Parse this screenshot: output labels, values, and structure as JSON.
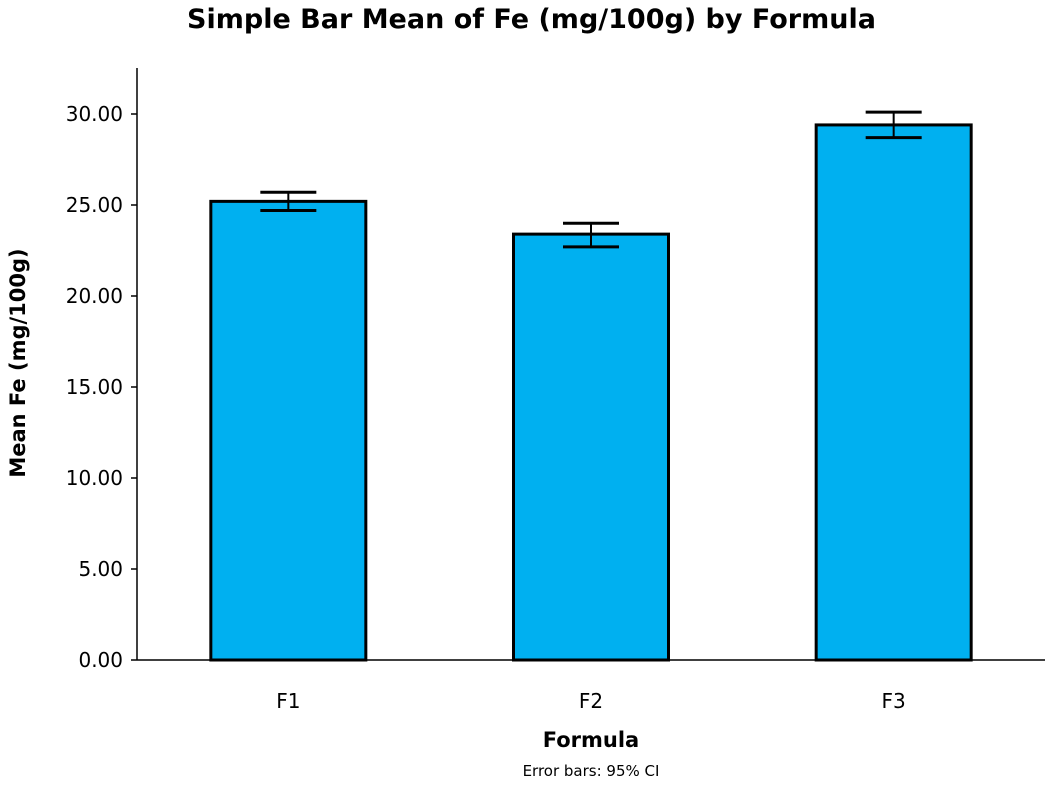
{
  "chart_data": {
    "type": "bar",
    "title": "Simple Bar Mean of Fe (mg/100g) by Formula",
    "xlabel": "Formula",
    "ylabel": "Mean Fe (mg/100g)",
    "note": "Error bars: 95% CI",
    "categories": [
      "F1",
      "F2",
      "F3"
    ],
    "values": [
      25.2,
      23.4,
      29.4
    ],
    "error_low": [
      24.7,
      22.7,
      28.7
    ],
    "error_high": [
      25.7,
      24.0,
      30.1
    ],
    "ylim": [
      0,
      32.5
    ],
    "yticks": [
      "0.00",
      "5.00",
      "10.00",
      "15.00",
      "20.00",
      "25.00",
      "30.00"
    ],
    "ytick_values": [
      0,
      5,
      10,
      15,
      20,
      25,
      30
    ],
    "grid": false,
    "bar_color": "#00B0F0",
    "edge_color": "#000000"
  }
}
